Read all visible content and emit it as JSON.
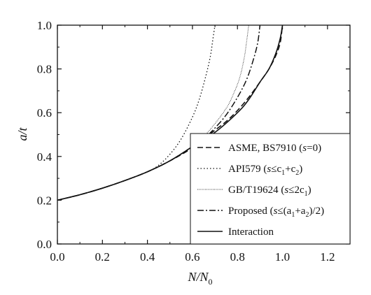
{
  "chart_data": {
    "type": "line",
    "xlabel": "N/N0",
    "ylabel": "a/t",
    "xlim": [
      0.0,
      1.3
    ],
    "ylim": [
      0.0,
      1.0
    ],
    "x_ticks": [
      "0.0",
      "0.2",
      "0.4",
      "0.6",
      "0.8",
      "1.0",
      "1.2"
    ],
    "y_ticks": [
      "0.0",
      "0.2",
      "0.4",
      "0.6",
      "0.8",
      "1.0"
    ],
    "grid": false,
    "legend_position": "bottom-right",
    "series": [
      {
        "name": "ASME, BS7910 (s=0)",
        "style": "dashed",
        "x": [
          0.0,
          0.1,
          0.2,
          0.3,
          0.4,
          0.5,
          0.6,
          0.7,
          0.75,
          0.8,
          0.85,
          0.9,
          0.94,
          0.97,
          0.99,
          1.0
        ],
        "y": [
          0.2,
          0.225,
          0.255,
          0.29,
          0.33,
          0.38,
          0.44,
          0.52,
          0.56,
          0.61,
          0.67,
          0.74,
          0.8,
          0.86,
          0.92,
          1.0
        ]
      },
      {
        "name": "API579 (s≤c1+c2)",
        "style": "dotted",
        "x": [
          0.0,
          0.1,
          0.2,
          0.3,
          0.4,
          0.45,
          0.5,
          0.55,
          0.6,
          0.63,
          0.66,
          0.68,
          0.69,
          0.7
        ],
        "y": [
          0.2,
          0.225,
          0.255,
          0.29,
          0.33,
          0.36,
          0.41,
          0.48,
          0.58,
          0.66,
          0.77,
          0.86,
          0.93,
          1.0
        ]
      },
      {
        "name": "GB/T19624 (s≤2c1)",
        "style": "fine-dotted",
        "x": [
          0.0,
          0.1,
          0.2,
          0.3,
          0.4,
          0.5,
          0.55,
          0.6,
          0.65,
          0.7,
          0.75,
          0.78,
          0.81,
          0.83,
          0.84,
          0.85
        ],
        "y": [
          0.2,
          0.225,
          0.255,
          0.29,
          0.33,
          0.38,
          0.41,
          0.445,
          0.49,
          0.55,
          0.62,
          0.68,
          0.76,
          0.85,
          0.92,
          1.0
        ]
      },
      {
        "name": "Proposed (s≤(a1+a2)/2)",
        "style": "dash-dot",
        "x": [
          0.0,
          0.1,
          0.2,
          0.3,
          0.4,
          0.5,
          0.6,
          0.65,
          0.7,
          0.75,
          0.8,
          0.84,
          0.87,
          0.89,
          0.9
        ],
        "y": [
          0.2,
          0.225,
          0.255,
          0.29,
          0.33,
          0.38,
          0.445,
          0.48,
          0.53,
          0.59,
          0.67,
          0.75,
          0.84,
          0.92,
          1.0
        ]
      },
      {
        "name": "Interaction",
        "style": "solid",
        "x": [
          0.0,
          0.1,
          0.2,
          0.3,
          0.4,
          0.5,
          0.6,
          0.7,
          0.8,
          0.85,
          0.9,
          0.94,
          0.97,
          0.99,
          1.0
        ],
        "y": [
          0.2,
          0.225,
          0.255,
          0.29,
          0.33,
          0.38,
          0.445,
          0.51,
          0.6,
          0.66,
          0.74,
          0.8,
          0.87,
          0.94,
          1.0
        ]
      }
    ],
    "legend": [
      {
        "prefix": "ASME, BS7910 (",
        "var": "s",
        "suffix": "=0)"
      },
      {
        "prefix": "API579 (",
        "var": "s",
        "suffix": "≤c",
        "sub1": "1",
        "mid": "+c",
        "sub2": "2",
        "end": ")"
      },
      {
        "prefix": "GB/T19624 (",
        "var": "s",
        "suffix": "≤2c",
        "sub1": "1",
        "end": ")"
      },
      {
        "prefix": "Proposed (",
        "var": "s",
        "suffix": "≤(a",
        "sub1": "1",
        "mid": "+a",
        "sub2": "2",
        "end": ")/2)"
      },
      {
        "prefix": "Interaction"
      }
    ]
  }
}
